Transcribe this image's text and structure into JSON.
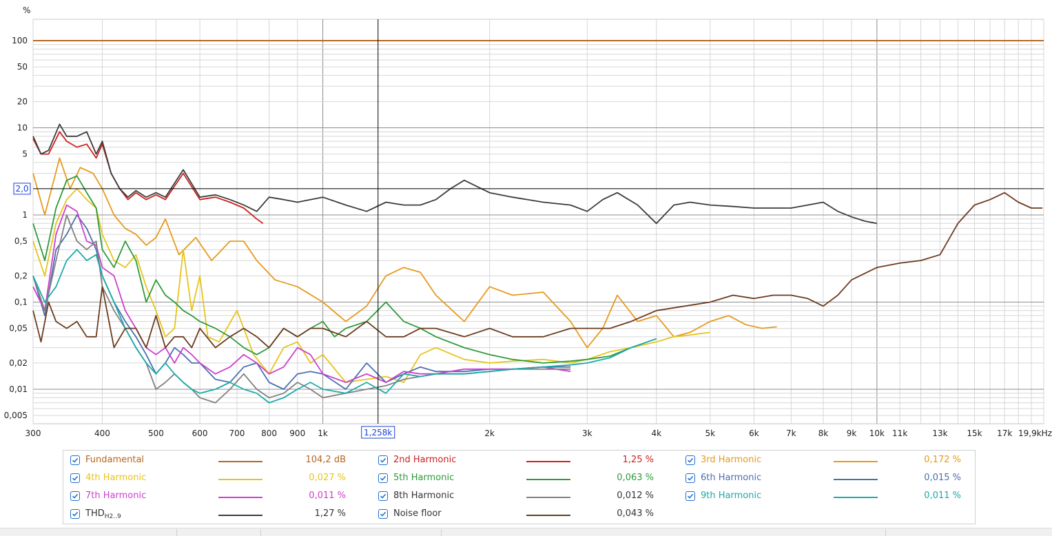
{
  "chart_data": {
    "type": "line",
    "title": "",
    "ylabel": "%",
    "xlabel": "",
    "xscale": "log",
    "yscale": "log",
    "xlim": [
      300,
      20000
    ],
    "ylim": [
      0.004,
      130
    ],
    "x_ticks": [
      {
        "v": 300,
        "l": "300"
      },
      {
        "v": 400,
        "l": "400"
      },
      {
        "v": 500,
        "l": "500"
      },
      {
        "v": 600,
        "l": "600"
      },
      {
        "v": 700,
        "l": "700"
      },
      {
        "v": 800,
        "l": "800"
      },
      {
        "v": 900,
        "l": "900"
      },
      {
        "v": 1000,
        "l": "1k"
      },
      {
        "v": 2000,
        "l": "2k"
      },
      {
        "v": 3000,
        "l": "3k"
      },
      {
        "v": 4000,
        "l": "4k"
      },
      {
        "v": 5000,
        "l": "5k"
      },
      {
        "v": 6000,
        "l": "6k"
      },
      {
        "v": 7000,
        "l": "7k"
      },
      {
        "v": 8000,
        "l": "8k"
      },
      {
        "v": 9000,
        "l": "9k"
      },
      {
        "v": 10000,
        "l": "10k"
      },
      {
        "v": 11000,
        "l": "11k",
        "gray": true
      },
      {
        "v": 13000,
        "l": "13k",
        "gray": true
      },
      {
        "v": 15000,
        "l": "15k",
        "gray": true
      },
      {
        "v": 17000,
        "l": "17k",
        "gray": true
      },
      {
        "v": 19900,
        "l": "19,9kHz"
      }
    ],
    "y_ticks": [
      {
        "v": 100,
        "l": "100"
      },
      {
        "v": 50,
        "l": "50"
      },
      {
        "v": 20,
        "l": "20"
      },
      {
        "v": 10,
        "l": "10"
      },
      {
        "v": 5,
        "l": "5"
      },
      {
        "v": 1,
        "l": "1"
      },
      {
        "v": 0.5,
        "l": "0,5"
      },
      {
        "v": 0.2,
        "l": "0,2"
      },
      {
        "v": 0.1,
        "l": "0,1"
      },
      {
        "v": 0.05,
        "l": "0,05"
      },
      {
        "v": 0.02,
        "l": "0,02"
      },
      {
        "v": 0.01,
        "l": "0,01"
      },
      {
        "v": 0.005,
        "l": "0,005"
      }
    ],
    "grid": true,
    "cursor": {
      "x": 1258,
      "y": 2.0,
      "x_label": "1,258k",
      "y_label": "2,0"
    },
    "legend_position": "bottom",
    "series": [
      {
        "name": "Fundamental",
        "color": "#b5651d",
        "value_label": "104,2 dB",
        "x": [
          300,
          20000
        ],
        "y": [
          100,
          100
        ]
      },
      {
        "name": "2nd Harmonic",
        "color": "#cc1f1f",
        "value_label": "1,25 %",
        "x": [
          300,
          310,
          320,
          335,
          345,
          360,
          375,
          390,
          400,
          415,
          430,
          445,
          460,
          480,
          500,
          520,
          560,
          600,
          640,
          680,
          720,
          760,
          780
        ],
        "y": [
          7.5,
          5,
          5,
          9,
          7,
          6,
          6.5,
          4.5,
          6.5,
          3,
          2,
          1.5,
          1.8,
          1.5,
          1.7,
          1.5,
          3,
          1.5,
          1.6,
          1.4,
          1.2,
          0.9,
          0.8
        ]
      },
      {
        "name": "3rd Harmonic",
        "color": "#e59a1c",
        "value_label": "0,172 %",
        "x": [
          300,
          315,
          335,
          350,
          365,
          385,
          400,
          420,
          440,
          460,
          480,
          500,
          520,
          550,
          590,
          630,
          680,
          720,
          760,
          820,
          900,
          1000,
          1100,
          1200,
          1300,
          1400,
          1500,
          1600,
          1800,
          2000,
          2200,
          2500,
          2800,
          3000,
          3200,
          3400,
          3700,
          4000,
          4300,
          4600,
          5000,
          5400,
          5800,
          6200,
          6600
        ],
        "y": [
          3,
          1,
          4.5,
          2,
          3.5,
          3,
          2,
          1,
          0.7,
          0.6,
          0.45,
          0.55,
          0.9,
          0.35,
          0.55,
          0.3,
          0.5,
          0.5,
          0.3,
          0.18,
          0.15,
          0.1,
          0.06,
          0.09,
          0.2,
          0.25,
          0.22,
          0.12,
          0.06,
          0.15,
          0.12,
          0.13,
          0.06,
          0.03,
          0.05,
          0.12,
          0.06,
          0.07,
          0.04,
          0.045,
          0.06,
          0.07,
          0.055,
          0.05,
          0.052
        ]
      },
      {
        "name": "4th Harmonic",
        "color": "#e6c41c",
        "value_label": "0,027 %",
        "x": [
          300,
          315,
          330,
          345,
          360,
          375,
          390,
          400,
          420,
          440,
          460,
          480,
          500,
          520,
          540,
          560,
          580,
          600,
          620,
          650,
          700,
          750,
          800,
          850,
          900,
          950,
          1000,
          1100,
          1200,
          1300,
          1400,
          1500,
          1600,
          1800,
          2000,
          2200,
          2500,
          2800,
          3000,
          3300,
          3600,
          4000,
          4300,
          4600,
          5000
        ],
        "y": [
          0.5,
          0.2,
          0.8,
          1.5,
          2,
          1.5,
          1.2,
          0.6,
          0.3,
          0.25,
          0.35,
          0.15,
          0.08,
          0.04,
          0.05,
          0.4,
          0.08,
          0.2,
          0.04,
          0.035,
          0.08,
          0.025,
          0.015,
          0.03,
          0.035,
          0.02,
          0.025,
          0.012,
          0.013,
          0.014,
          0.012,
          0.025,
          0.03,
          0.022,
          0.02,
          0.021,
          0.022,
          0.02,
          0.022,
          0.027,
          0.03,
          0.035,
          0.04,
          0.042,
          0.045
        ]
      },
      {
        "name": "5th Harmonic",
        "color": "#2e9a3a",
        "value_label": "0,063 %",
        "x": [
          300,
          315,
          330,
          345,
          360,
          375,
          390,
          400,
          420,
          440,
          460,
          480,
          500,
          520,
          540,
          560,
          580,
          600,
          640,
          680,
          720,
          760,
          800,
          850,
          900,
          950,
          1000,
          1050,
          1100,
          1200,
          1300,
          1400,
          1500,
          1600,
          1800,
          2000,
          2200,
          2500,
          2800,
          3000,
          3300,
          3600,
          4000
        ],
        "y": [
          0.8,
          0.3,
          1.2,
          2.5,
          2.8,
          1.8,
          1.2,
          0.4,
          0.25,
          0.5,
          0.3,
          0.1,
          0.18,
          0.12,
          0.1,
          0.08,
          0.07,
          0.06,
          0.05,
          0.04,
          0.03,
          0.025,
          0.03,
          0.05,
          0.04,
          0.05,
          0.06,
          0.04,
          0.05,
          0.06,
          0.1,
          0.06,
          0.05,
          0.04,
          0.03,
          0.025,
          0.022,
          0.02,
          0.021,
          0.022,
          0.024,
          0.03,
          0.038
        ]
      },
      {
        "name": "6th Harmonic",
        "color": "#4a6fb0",
        "value_label": "0,015 %",
        "x": [
          300,
          315,
          330,
          345,
          360,
          375,
          390,
          400,
          420,
          440,
          460,
          480,
          500,
          520,
          540,
          560,
          580,
          600,
          640,
          680,
          720,
          760,
          800,
          850,
          900,
          950,
          1000,
          1100,
          1200,
          1300,
          1400,
          1500,
          1600,
          1800,
          2000,
          2200,
          2500,
          2800
        ],
        "y": [
          0.2,
          0.07,
          0.4,
          0.6,
          1,
          0.7,
          0.4,
          0.2,
          0.1,
          0.06,
          0.04,
          0.025,
          0.015,
          0.02,
          0.03,
          0.025,
          0.02,
          0.02,
          0.013,
          0.012,
          0.018,
          0.02,
          0.012,
          0.01,
          0.015,
          0.016,
          0.015,
          0.01,
          0.02,
          0.012,
          0.015,
          0.018,
          0.016,
          0.016,
          0.017,
          0.017,
          0.018,
          0.018
        ]
      },
      {
        "name": "7th Harmonic",
        "color": "#cc3fcc",
        "value_label": "0,011 %",
        "x": [
          300,
          315,
          330,
          345,
          360,
          375,
          390,
          400,
          420,
          440,
          460,
          480,
          500,
          520,
          540,
          560,
          580,
          600,
          640,
          680,
          720,
          760,
          800,
          850,
          900,
          950,
          1000,
          1100,
          1200,
          1300,
          1400,
          1500,
          1600,
          1800,
          2000,
          2200,
          2500,
          2800
        ],
        "y": [
          0.15,
          0.08,
          0.6,
          1.3,
          1.1,
          0.5,
          0.45,
          0.25,
          0.2,
          0.08,
          0.05,
          0.03,
          0.025,
          0.03,
          0.02,
          0.03,
          0.025,
          0.02,
          0.015,
          0.018,
          0.025,
          0.02,
          0.015,
          0.018,
          0.03,
          0.025,
          0.015,
          0.012,
          0.015,
          0.012,
          0.016,
          0.015,
          0.015,
          0.017,
          0.017,
          0.017,
          0.018,
          0.016
        ]
      },
      {
        "name": "8th Harmonic",
        "color": "#808080",
        "value_label": "0,012 %",
        "x": [
          300,
          315,
          330,
          345,
          360,
          375,
          390,
          400,
          420,
          440,
          460,
          480,
          500,
          520,
          540,
          560,
          580,
          600,
          640,
          680,
          720,
          760,
          800,
          850,
          900,
          950,
          1000,
          1100,
          1200,
          1300,
          1400,
          1500,
          1600,
          1800,
          2000,
          2200,
          2500,
          2800
        ],
        "y": [
          0.2,
          0.08,
          0.3,
          1,
          0.5,
          0.4,
          0.5,
          0.15,
          0.08,
          0.05,
          0.03,
          0.02,
          0.01,
          0.012,
          0.015,
          0.012,
          0.01,
          0.008,
          0.007,
          0.01,
          0.015,
          0.01,
          0.008,
          0.009,
          0.012,
          0.01,
          0.008,
          0.009,
          0.01,
          0.011,
          0.013,
          0.014,
          0.015,
          0.015,
          0.016,
          0.017,
          0.017,
          0.017
        ]
      },
      {
        "name": "9th Harmonic",
        "color": "#1aaaa8",
        "value_label": "0,011 %",
        "x": [
          300,
          315,
          330,
          345,
          360,
          375,
          390,
          400,
          420,
          440,
          460,
          480,
          500,
          520,
          540,
          560,
          580,
          600,
          640,
          680,
          720,
          760,
          800,
          850,
          900,
          950,
          1000,
          1100,
          1200,
          1300,
          1400,
          1500,
          1600,
          1800,
          2000,
          2200,
          2500,
          2800,
          3000,
          3300,
          3600,
          4000
        ],
        "y": [
          0.2,
          0.1,
          0.15,
          0.3,
          0.4,
          0.3,
          0.35,
          0.2,
          0.1,
          0.05,
          0.03,
          0.02,
          0.015,
          0.02,
          0.015,
          0.012,
          0.01,
          0.009,
          0.01,
          0.012,
          0.01,
          0.009,
          0.007,
          0.008,
          0.01,
          0.012,
          0.01,
          0.009,
          0.012,
          0.009,
          0.015,
          0.014,
          0.015,
          0.015,
          0.016,
          0.017,
          0.018,
          0.019,
          0.02,
          0.023,
          0.03,
          0.038
        ]
      },
      {
        "name": "THD",
        "name_sub": "H2..9",
        "color": "#3a3a3a",
        "value_label": "1,27 %",
        "x": [
          300,
          310,
          320,
          335,
          345,
          360,
          375,
          390,
          400,
          415,
          430,
          445,
          460,
          480,
          500,
          520,
          560,
          600,
          640,
          680,
          720,
          760,
          800,
          850,
          900,
          950,
          1000,
          1100,
          1200,
          1300,
          1400,
          1500,
          1600,
          1700,
          1800,
          2000,
          2200,
          2500,
          2800,
          3000,
          3200,
          3400,
          3700,
          4000,
          4300,
          4600,
          5000,
          5500,
          6000,
          6500,
          7000,
          7500,
          8000,
          8500,
          9000,
          9500,
          10000
        ],
        "y": [
          8,
          5,
          5.5,
          11,
          8,
          8,
          9,
          5,
          7,
          3,
          2,
          1.6,
          1.9,
          1.6,
          1.8,
          1.6,
          3.3,
          1.6,
          1.7,
          1.5,
          1.3,
          1.1,
          1.6,
          1.5,
          1.4,
          1.5,
          1.6,
          1.3,
          1.1,
          1.4,
          1.3,
          1.3,
          1.5,
          2,
          2.5,
          1.8,
          1.6,
          1.4,
          1.3,
          1.1,
          1.5,
          1.8,
          1.3,
          0.8,
          1.3,
          1.4,
          1.3,
          1.25,
          1.2,
          1.2,
          1.2,
          1.3,
          1.4,
          1.1,
          0.95,
          0.85,
          0.8
        ]
      },
      {
        "name": "Noise floor",
        "color": "#6b3a1c",
        "value_label": "0,043 %",
        "x": [
          300,
          310,
          320,
          330,
          345,
          360,
          375,
          390,
          400,
          420,
          440,
          460,
          480,
          500,
          520,
          540,
          560,
          580,
          600,
          640,
          680,
          720,
          760,
          800,
          850,
          900,
          950,
          1000,
          1100,
          1200,
          1300,
          1400,
          1500,
          1600,
          1800,
          2000,
          2200,
          2500,
          2800,
          3000,
          3300,
          3600,
          4000,
          4500,
          5000,
          5500,
          6000,
          6500,
          7000,
          7500,
          8000,
          8500,
          9000,
          10000,
          11000,
          12000,
          13000,
          14000,
          15000,
          16000,
          17000,
          18000,
          19000,
          19900
        ],
        "y": [
          0.08,
          0.035,
          0.1,
          0.06,
          0.05,
          0.06,
          0.04,
          0.04,
          0.15,
          0.03,
          0.05,
          0.05,
          0.03,
          0.07,
          0.03,
          0.04,
          0.04,
          0.03,
          0.05,
          0.03,
          0.04,
          0.05,
          0.04,
          0.03,
          0.05,
          0.04,
          0.05,
          0.05,
          0.04,
          0.06,
          0.04,
          0.04,
          0.05,
          0.05,
          0.04,
          0.05,
          0.04,
          0.04,
          0.05,
          0.05,
          0.05,
          0.06,
          0.08,
          0.09,
          0.1,
          0.12,
          0.11,
          0.12,
          0.12,
          0.11,
          0.09,
          0.12,
          0.18,
          0.25,
          0.28,
          0.3,
          0.35,
          0.8,
          1.3,
          1.5,
          1.8,
          1.4,
          1.2,
          1.2
        ]
      }
    ]
  }
}
